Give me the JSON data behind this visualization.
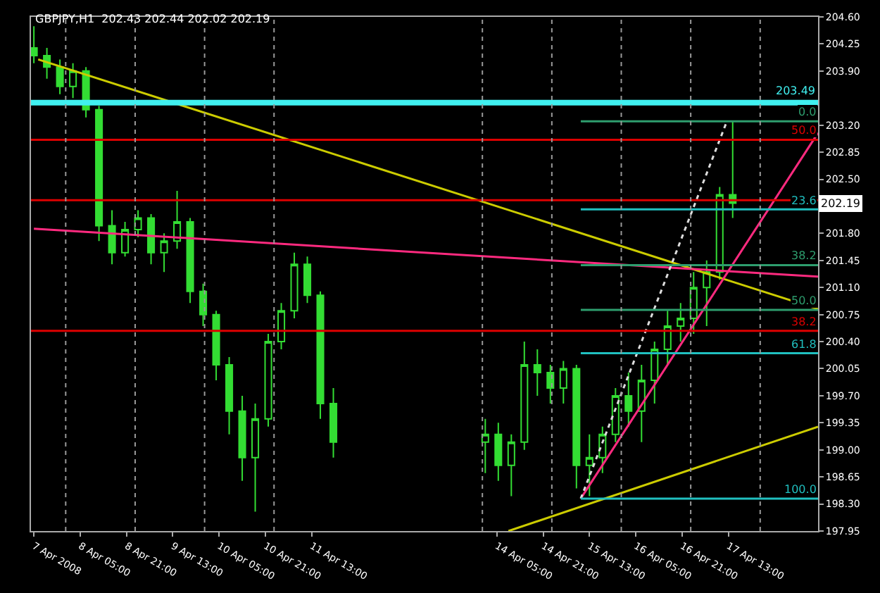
{
  "chart_data": {
    "type": "candlestick",
    "title": "GBPJPY,H1  202.43 202.44 202.02 202.19",
    "xlim": [
      "2008-04-07T12:00",
      "2008-04-18T20:00"
    ],
    "ylim": [
      197.95,
      204.6
    ],
    "xticks": [
      {
        "value": "2008-04-07T13:00",
        "label": "7 Apr 2008"
      },
      {
        "value": "2008-04-08T05:00",
        "label": "8 Apr 05:00"
      },
      {
        "value": "2008-04-08T21:00",
        "label": "8 Apr 21:00"
      },
      {
        "value": "2008-04-09T13:00",
        "label": "9 Apr 13:00"
      },
      {
        "value": "2008-04-10T05:00",
        "label": "10 Apr 05:00"
      },
      {
        "value": "2008-04-10T21:00",
        "label": "10 Apr 21:00"
      },
      {
        "value": "2008-04-11T13:00",
        "label": "11 Apr 13:00"
      },
      {
        "value": "2008-04-14T05:00",
        "label": "14 Apr 05:00"
      },
      {
        "value": "2008-04-14T21:00",
        "label": "14 Apr 21:00"
      },
      {
        "value": "2008-04-15T13:00",
        "label": "15 Apr 13:00"
      },
      {
        "value": "2008-04-16T05:00",
        "label": "16 Apr 05:00"
      },
      {
        "value": "2008-04-16T21:00",
        "label": "16 Apr 21:00"
      },
      {
        "value": "2008-04-17T13:00",
        "label": "17 Apr 13:00"
      }
    ],
    "yticks": [
      {
        "value": 197.95,
        "label": "197.95"
      },
      {
        "value": 198.3,
        "label": "198.30"
      },
      {
        "value": 198.65,
        "label": "198.65"
      },
      {
        "value": 199.0,
        "label": "199.00"
      },
      {
        "value": 199.35,
        "label": "199.35"
      },
      {
        "value": 199.7,
        "label": "199.70"
      },
      {
        "value": 200.05,
        "label": "200.05"
      },
      {
        "value": 200.4,
        "label": "200.40"
      },
      {
        "value": 200.75,
        "label": "200.75"
      },
      {
        "value": 201.1,
        "label": "201.10"
      },
      {
        "value": 201.45,
        "label": "201.45"
      },
      {
        "value": 201.8,
        "label": "201.80"
      },
      {
        "value": 202.5,
        "label": "202.50"
      },
      {
        "value": 202.85,
        "label": "202.85"
      },
      {
        "value": 203.2,
        "label": "203.20"
      },
      {
        "value": 203.9,
        "label": "203.90"
      },
      {
        "value": 204.25,
        "label": "204.25"
      },
      {
        "value": 204.6,
        "label": "204.60"
      }
    ],
    "grid": false,
    "series": [
      {
        "color": "#33dd33",
        "x": [
          "2008-04-07T13:00",
          "2008-04-07T17:30",
          "2008-04-07T22:00",
          "2008-04-08T02:30",
          "2008-04-08T07:00",
          "2008-04-08T11:30",
          "2008-04-08T16:00",
          "2008-04-08T20:30",
          "2008-04-09T01:00",
          "2008-04-09T05:30",
          "2008-04-09T10:00",
          "2008-04-09T14:30",
          "2008-04-09T19:00",
          "2008-04-09T23:30",
          "2008-04-10T04:00",
          "2008-04-10T08:30",
          "2008-04-10T13:00",
          "2008-04-10T17:30",
          "2008-04-10T22:00",
          "2008-04-11T02:30",
          "2008-04-11T07:00",
          "2008-04-11T11:30",
          "2008-04-11T16:00",
          "2008-04-11T20:30",
          "2008-04-14T01:00",
          "2008-04-14T05:30",
          "2008-04-14T10:00",
          "2008-04-14T14:30",
          "2008-04-14T19:00",
          "2008-04-14T23:30",
          "2008-04-15T04:00",
          "2008-04-15T08:30",
          "2008-04-15T13:00",
          "2008-04-15T17:30",
          "2008-04-15T22:00",
          "2008-04-16T02:30",
          "2008-04-16T07:00",
          "2008-04-16T11:30",
          "2008-04-16T16:00",
          "2008-04-16T20:30",
          "2008-04-17T01:00",
          "2008-04-17T05:30",
          "2008-04-17T10:00",
          "2008-04-17T14:30"
        ],
        "ohlc": [
          [
            204.2,
            204.48,
            204.0,
            204.1
          ],
          [
            204.1,
            204.2,
            203.8,
            203.95
          ],
          [
            203.95,
            204.05,
            203.6,
            203.7
          ],
          [
            203.7,
            204.0,
            203.55,
            203.9
          ],
          [
            203.9,
            203.95,
            203.3,
            203.4
          ],
          [
            203.4,
            203.45,
            201.7,
            201.9
          ],
          [
            201.9,
            202.1,
            201.4,
            201.55
          ],
          [
            201.55,
            201.95,
            201.5,
            201.85
          ],
          [
            201.85,
            202.1,
            201.75,
            202.0
          ],
          [
            202.0,
            202.05,
            201.4,
            201.55
          ],
          [
            201.55,
            201.8,
            201.3,
            201.7
          ],
          [
            201.7,
            202.35,
            201.6,
            201.95
          ],
          [
            201.95,
            202.0,
            200.9,
            201.05
          ],
          [
            201.05,
            201.15,
            200.6,
            200.75
          ],
          [
            200.75,
            200.8,
            199.9,
            200.1
          ],
          [
            200.1,
            200.2,
            199.2,
            199.5
          ],
          [
            199.5,
            199.7,
            198.6,
            198.9
          ],
          [
            198.9,
            199.6,
            198.2,
            199.4
          ],
          [
            199.4,
            200.5,
            199.3,
            200.4
          ],
          [
            200.4,
            200.9,
            200.3,
            200.8
          ],
          [
            200.8,
            201.55,
            200.7,
            201.4
          ],
          [
            201.4,
            201.5,
            200.9,
            201.0
          ],
          [
            201.0,
            201.05,
            199.4,
            199.6
          ],
          [
            199.6,
            199.8,
            198.9,
            199.1
          ],
          [
            199.1,
            199.4,
            198.7,
            199.2
          ],
          [
            199.2,
            199.35,
            198.6,
            198.8
          ],
          [
            198.8,
            199.2,
            198.4,
            199.1
          ],
          [
            199.1,
            200.4,
            199.0,
            200.1
          ],
          [
            200.1,
            200.3,
            199.7,
            200.0
          ],
          [
            200.0,
            200.1,
            199.6,
            199.8
          ],
          [
            199.8,
            200.15,
            199.6,
            200.05
          ],
          [
            200.05,
            200.1,
            198.5,
            198.8
          ],
          [
            198.8,
            199.2,
            198.4,
            198.9
          ],
          [
            198.9,
            199.3,
            198.7,
            199.2
          ],
          [
            199.2,
            199.8,
            199.1,
            199.7
          ],
          [
            199.7,
            200.0,
            199.3,
            199.5
          ],
          [
            199.5,
            200.1,
            199.1,
            199.9
          ],
          [
            199.9,
            200.4,
            199.6,
            200.3
          ],
          [
            200.3,
            200.8,
            200.1,
            200.6
          ],
          [
            200.6,
            200.9,
            200.4,
            200.7
          ],
          [
            200.7,
            201.3,
            200.5,
            201.1
          ],
          [
            201.1,
            201.45,
            200.6,
            201.3
          ],
          [
            201.3,
            202.4,
            201.2,
            202.3
          ],
          [
            202.3,
            203.25,
            202.0,
            202.19
          ]
        ]
      },
      {
        "type": "line",
        "color": "#cccc00",
        "x": [
          "2008-04-07T14:30",
          "2008-04-18T20:00"
        ],
        "values": [
          204.05,
          200.82
        ]
      },
      {
        "type": "line",
        "color": "#cccc00",
        "x": [
          "2008-04-14T09:00",
          "2008-04-18T20:00"
        ],
        "values": [
          197.95,
          199.3
        ]
      },
      {
        "type": "line",
        "color": "#ff2a7f",
        "x": [
          "2008-04-07T13:00",
          "2008-04-18T20:00"
        ],
        "values": [
          201.86,
          201.24
        ]
      },
      {
        "type": "line",
        "color": "#ff2a7f",
        "x": [
          "2008-04-15T10:00",
          "2008-04-18T20:00"
        ],
        "values": [
          198.37,
          203.1
        ]
      },
      {
        "type": "line",
        "color": "#dddddd",
        "line_style": "dotted",
        "x": [
          "2008-04-15T10:00",
          "2008-04-17T12:30"
        ],
        "values": [
          198.37,
          203.25
        ]
      },
      {
        "type": "line",
        "name": "0.0",
        "color": "#2e9e6e",
        "x": [
          "2008-04-15T10:00",
          "2008-04-18T20:00"
        ],
        "values": [
          203.25,
          203.25
        ]
      },
      {
        "type": "line",
        "name": "23.6",
        "color": "#20c0c0",
        "x": [
          "2008-04-15T10:00",
          "2008-04-18T20:00"
        ],
        "values": [
          202.11,
          202.11
        ]
      },
      {
        "type": "line",
        "name": "38.2",
        "color": "#2e9e6e",
        "x": [
          "2008-04-15T10:00",
          "2008-04-18T20:00"
        ],
        "values": [
          201.39,
          201.39
        ]
      },
      {
        "type": "line",
        "name": "50.0",
        "color": "#2e9e6e",
        "x": [
          "2008-04-15T10:00",
          "2008-04-18T20:00"
        ],
        "values": [
          200.81,
          200.81
        ]
      },
      {
        "type": "line",
        "name": "61.8",
        "color": "#20c0c0",
        "x": [
          "2008-04-15T10:00",
          "2008-04-18T20:00"
        ],
        "values": [
          200.25,
          200.25
        ]
      },
      {
        "type": "line",
        "name": "100.0",
        "color": "#20c0c0",
        "x": [
          "2008-04-15T10:00",
          "2008-04-18T20:00"
        ],
        "values": [
          198.37,
          198.37
        ]
      },
      {
        "type": "line",
        "name": "50.0",
        "color": "#dd0000",
        "x": [
          "2008-04-07T12:00",
          "2008-04-18T20:00"
        ],
        "values": [
          203.01,
          203.01
        ]
      },
      {
        "type": "line",
        "color": "#dd0000",
        "x": [
          "2008-04-07T12:00",
          "2008-04-18T20:00"
        ],
        "values": [
          202.23,
          202.23
        ]
      },
      {
        "type": "line",
        "name": "38.2",
        "color": "#dd0000",
        "x": [
          "2008-04-07T12:00",
          "2008-04-18T20:00"
        ],
        "values": [
          200.54,
          200.54
        ]
      }
    ],
    "ref_lines": [
      {
        "axis": "y",
        "value": 203.49,
        "label": "203.49",
        "color": "#40f0f0"
      },
      {
        "axis": "x",
        "value": "2008-04-08",
        "label": null,
        "color": "#999999",
        "line_style": "dotted"
      },
      {
        "axis": "x",
        "value": "2008-04-09",
        "label": null,
        "color": "#999999",
        "line_style": "dotted"
      },
      {
        "axis": "x",
        "value": "2008-04-10",
        "label": null,
        "color": "#999999",
        "line_style": "dotted"
      },
      {
        "axis": "x",
        "value": "2008-04-11",
        "label": null,
        "color": "#999999",
        "line_style": "dotted"
      },
      {
        "axis": "x",
        "value": "2008-04-14",
        "label": null,
        "color": "#999999",
        "line_style": "dotted"
      },
      {
        "axis": "x",
        "value": "2008-04-15",
        "label": null,
        "color": "#999999",
        "line_style": "dotted"
      },
      {
        "axis": "x",
        "value": "2008-04-16",
        "label": null,
        "color": "#999999",
        "line_style": "dotted"
      },
      {
        "axis": "x",
        "value": "2008-04-17",
        "label": null,
        "color": "#999999",
        "line_style": "dotted"
      },
      {
        "axis": "x",
        "value": "2008-04-18",
        "label": null,
        "color": "#999999",
        "line_style": "dotted"
      }
    ],
    "annotations": [
      {
        "text": "202.19",
        "x": "2008-04-18T20:00",
        "y": 202.19
      }
    ]
  }
}
